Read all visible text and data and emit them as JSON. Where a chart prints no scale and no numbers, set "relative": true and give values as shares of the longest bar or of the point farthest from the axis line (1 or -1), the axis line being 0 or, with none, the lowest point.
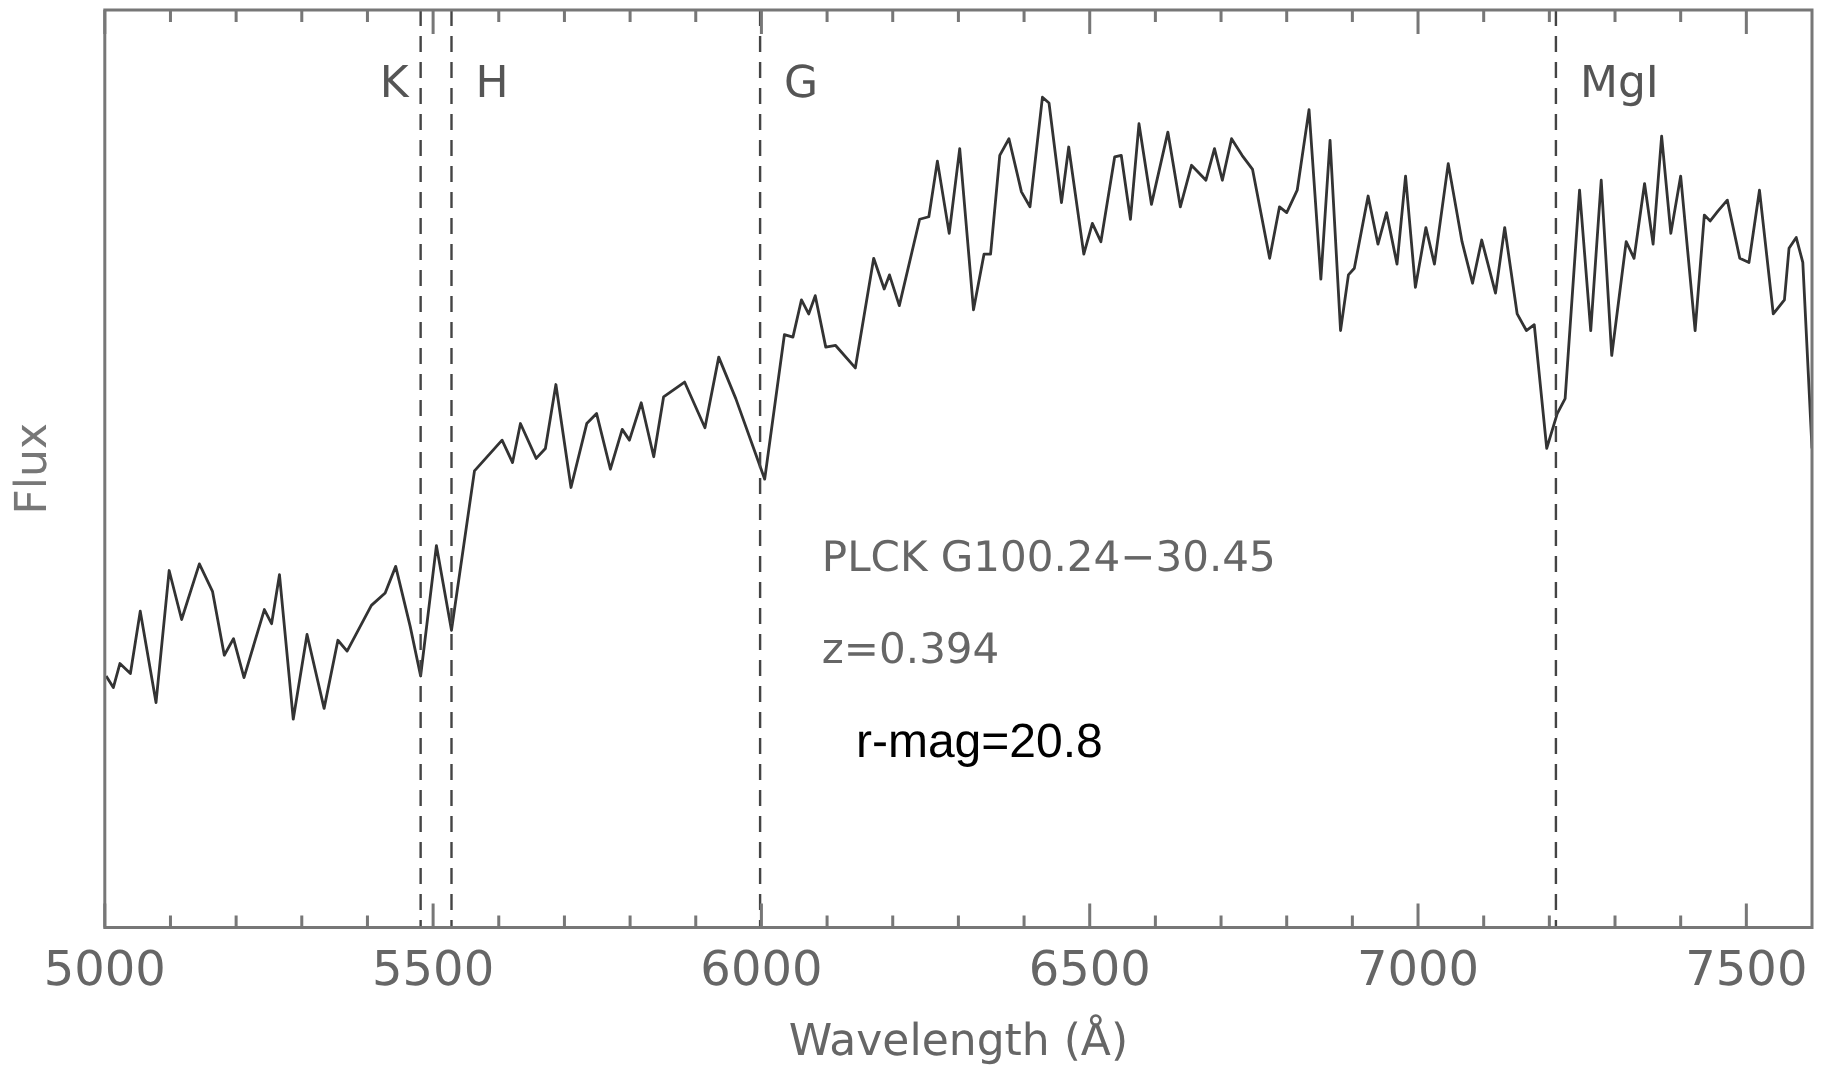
{
  "chart_data": {
    "type": "line",
    "xlabel": "Wavelength (Å)",
    "ylabel": "Flux",
    "relative": true,
    "xlim": [
      5000,
      7600
    ],
    "xticks": [
      5000,
      {
        "value": 5100,
        "label": null
      },
      {
        "value": 5200,
        "label": null
      },
      {
        "value": 5300,
        "label": null
      },
      {
        "value": 5400,
        "label": null
      },
      5500,
      {
        "value": 5600,
        "label": null
      },
      {
        "value": 5700,
        "label": null
      },
      {
        "value": 5800,
        "label": null
      },
      {
        "value": 5900,
        "label": null
      },
      6000,
      {
        "value": 6100,
        "label": null
      },
      {
        "value": 6200,
        "label": null
      },
      {
        "value": 6300,
        "label": null
      },
      {
        "value": 6400,
        "label": null
      },
      6500,
      {
        "value": 6600,
        "label": null
      },
      {
        "value": 6700,
        "label": null
      },
      {
        "value": 6800,
        "label": null
      },
      {
        "value": 6900,
        "label": null
      },
      7000,
      {
        "value": 7100,
        "label": null
      },
      {
        "value": 7200,
        "label": null
      },
      {
        "value": 7300,
        "label": null
      },
      {
        "value": 7400,
        "label": null
      },
      7500
    ],
    "grid": false,
    "legend": false,
    "marker": "none",
    "line_style": "solid",
    "series": [
      {
        "color": "#333333",
        "x": [
          5002,
          5013,
          5023,
          5039,
          5054,
          5078,
          5098,
          5117,
          5144,
          5164,
          5182,
          5196,
          5212,
          5243,
          5254,
          5266,
          5287,
          5308,
          5334,
          5355,
          5369,
          5406,
          5427,
          5443,
          5465,
          5481,
          5505,
          5528,
          5563,
          5605,
          5621,
          5633,
          5657,
          5671,
          5687,
          5710,
          5734,
          5749,
          5770,
          5788,
          5799,
          5817,
          5836,
          5851,
          5883,
          5914,
          5935,
          5961,
          6005,
          6035,
          6048,
          6061,
          6072,
          6082,
          6098,
          6113,
          6143,
          6171,
          6187,
          6195,
          6210,
          6241,
          6255,
          6268,
          6286,
          6302,
          6323,
          6339,
          6349,
          6363,
          6377,
          6396,
          6409,
          6428,
          6438,
          6457,
          6468,
          6491,
          6504,
          6517,
          6538,
          6548,
          6562,
          6575,
          6594,
          6619,
          6638,
          6655,
          6677,
          6690,
          6702,
          6716,
          6732,
          6748,
          6774,
          6789,
          6800,
          6816,
          6834,
          6852,
          6866,
          6882,
          6894,
          6903,
          6924,
          6939,
          6952,
          6968,
          6981,
          6996,
          7012,
          7025,
          7046,
          7067,
          7083,
          7097,
          7118,
          7132,
          7151,
          7165,
          7177,
          7196,
          7212,
          7224,
          7246,
          7263,
          7279,
          7295,
          7317,
          7329,
          7345,
          7358,
          7371,
          7385,
          7400,
          7422,
          7436,
          7445,
          7457,
          7471,
          7490,
          7504,
          7520,
          7541,
          7558,
          7565,
          7576,
          7586,
          7600
        ],
        "values": [
          0.303,
          0.289,
          0.318,
          0.306,
          0.381,
          0.271,
          0.43,
          0.371,
          0.438,
          0.405,
          0.328,
          0.348,
          0.301,
          0.383,
          0.366,
          0.425,
          0.251,
          0.353,
          0.264,
          0.346,
          0.333,
          0.388,
          0.403,
          0.435,
          0.363,
          0.303,
          0.46,
          0.358,
          0.55,
          0.587,
          0.56,
          0.607,
          0.565,
          0.577,
          0.654,
          0.53,
          0.607,
          0.619,
          0.552,
          0.6,
          0.587,
          0.632,
          0.567,
          0.639,
          0.657,
          0.602,
          0.687,
          0.637,
          0.54,
          0.714,
          0.711,
          0.756,
          0.739,
          0.761,
          0.699,
          0.701,
          0.674,
          0.806,
          0.769,
          0.786,
          0.749,
          0.853,
          0.856,
          0.923,
          0.836,
          0.938,
          0.744,
          0.811,
          0.811,
          0.93,
          0.95,
          0.886,
          0.868,
          1,
          0.993,
          0.873,
          0.94,
          0.811,
          0.848,
          0.826,
          0.928,
          0.93,
          0.853,
          0.968,
          0.871,
          0.958,
          0.868,
          0.918,
          0.9,
          0.938,
          0.9,
          0.95,
          0.93,
          0.913,
          0.806,
          0.868,
          0.861,
          0.888,
          0.985,
          0.781,
          0.948,
          0.719,
          0.786,
          0.794,
          0.881,
          0.823,
          0.861,
          0.799,
          0.905,
          0.771,
          0.843,
          0.799,
          0.92,
          0.826,
          0.776,
          0.828,
          0.764,
          0.843,
          0.739,
          0.719,
          0.726,
          0.577,
          0.619,
          0.637,
          0.888,
          0.719,
          0.9,
          0.689,
          0.826,
          0.806,
          0.896,
          0.823,
          0.953,
          0.836,
          0.905,
          0.719,
          0.858,
          0.851,
          0.863,
          0.876,
          0.806,
          0.801,
          0.888,
          0.739,
          0.756,
          0.818,
          0.831,
          0.801,
          0.577
        ]
      }
    ],
    "ref_lines": [
      {
        "axis": "x",
        "value": 5481,
        "label": "K",
        "line_style": "dashed"
      },
      {
        "axis": "x",
        "value": 5528,
        "label": "H",
        "line_style": "dashed"
      },
      {
        "axis": "x",
        "value": 5998,
        "label": "G",
        "line_style": "dashed"
      },
      {
        "axis": "x",
        "value": 7210,
        "label": "MgI",
        "line_style": "dashed"
      }
    ],
    "annotations": [
      "PLCK G100.24−30.45",
      "z=0.394",
      "r-mag=20.8"
    ]
  }
}
